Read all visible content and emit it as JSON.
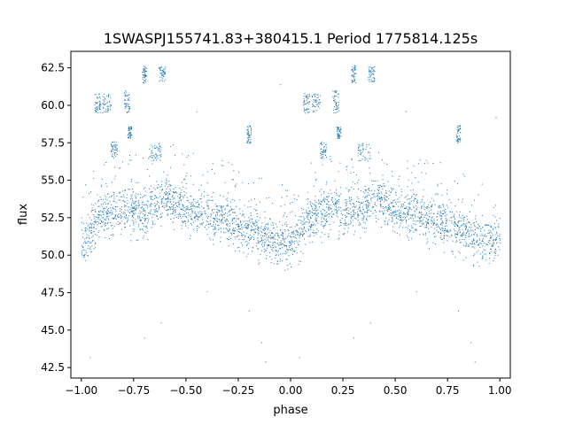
{
  "chart_data": {
    "type": "scatter",
    "title": "1SWASPJ155741.83+380415.1 Period 1775814.125s",
    "xlabel": "phase",
    "ylabel": "flux",
    "xlim": [
      -1.05,
      1.05
    ],
    "ylim": [
      41.8,
      63.6
    ],
    "x_ticks": [
      -1.0,
      -0.75,
      -0.5,
      -0.25,
      0.0,
      0.25,
      0.5,
      0.75,
      1.0
    ],
    "x_tick_labels": [
      "−1.00",
      "−0.75",
      "−0.50",
      "−0.25",
      "0.00",
      "0.25",
      "0.50",
      "0.75",
      "1.00"
    ],
    "y_ticks": [
      42.5,
      45.0,
      47.5,
      50.0,
      52.5,
      55.0,
      57.5,
      60.0,
      62.5
    ],
    "y_tick_labels": [
      "42.5",
      "45.0",
      "47.5",
      "50.0",
      "52.5",
      "55.0",
      "57.5",
      "60.0",
      "62.5"
    ],
    "grid": false,
    "legend": "none",
    "marker_color": "#1f77b4",
    "series": [
      {
        "x": [
          -1.0,
          -0.96,
          -0.92,
          -0.88,
          -0.84,
          -0.8,
          -0.76,
          -0.72,
          -0.68,
          -0.64,
          -0.6,
          -0.56,
          -0.52,
          -0.48,
          -0.44,
          -0.4,
          -0.36,
          -0.32,
          -0.28,
          -0.24,
          -0.2,
          -0.16,
          -0.12,
          -0.08,
          -0.04,
          0.0,
          0.04,
          0.08,
          0.12,
          0.16,
          0.2,
          0.24,
          0.28,
          0.32,
          0.36,
          0.4,
          0.44,
          0.48,
          0.52,
          0.56,
          0.6,
          0.64,
          0.68,
          0.72,
          0.76,
          0.8,
          0.84,
          0.88,
          0.92,
          0.96,
          1.0
        ],
        "y": [
          51.0,
          51.5,
          52.5,
          52.8,
          53.0,
          53.2,
          53.0,
          52.8,
          53.0,
          53.4,
          54.0,
          53.5,
          53.2,
          53.0,
          53.0,
          52.8,
          52.5,
          52.5,
          52.3,
          52.0,
          51.8,
          51.5,
          51.3,
          51.0,
          51.0,
          51.0,
          51.5,
          52.5,
          52.8,
          53.0,
          53.2,
          53.0,
          52.8,
          53.0,
          53.4,
          54.0,
          53.5,
          53.2,
          53.0,
          53.0,
          52.8,
          52.5,
          52.5,
          52.3,
          52.0,
          51.8,
          51.5,
          51.3,
          51.0,
          51.0,
          51.0
        ]
      }
    ],
    "clumps": [
      {
        "x": [
          -0.94,
          -0.91
        ],
        "y": [
          59.5,
          60.8
        ]
      },
      {
        "x": [
          -0.9,
          -0.86
        ],
        "y": [
          59.5,
          60.8
        ]
      },
      {
        "x": [
          -0.8,
          -0.77
        ],
        "y": [
          59.5,
          61.0
        ]
      },
      {
        "x": [
          -0.71,
          -0.69
        ],
        "y": [
          61.5,
          62.7
        ]
      },
      {
        "x": [
          -0.63,
          -0.6
        ],
        "y": [
          61.6,
          62.6
        ]
      },
      {
        "x": [
          -0.86,
          -0.83
        ],
        "y": [
          56.5,
          57.6
        ]
      },
      {
        "x": [
          -0.78,
          -0.76
        ],
        "y": [
          57.8,
          58.6
        ]
      },
      {
        "x": [
          -0.68,
          -0.62
        ],
        "y": [
          56.3,
          57.5
        ]
      },
      {
        "x": [
          -0.21,
          -0.19
        ],
        "y": [
          57.5,
          58.7
        ]
      },
      {
        "x": [
          0.06,
          0.09
        ],
        "y": [
          59.5,
          60.8
        ]
      },
      {
        "x": [
          0.1,
          0.14
        ],
        "y": [
          59.5,
          60.8
        ]
      },
      {
        "x": [
          0.2,
          0.23
        ],
        "y": [
          59.5,
          61.0
        ]
      },
      {
        "x": [
          0.29,
          0.31
        ],
        "y": [
          61.5,
          62.7
        ]
      },
      {
        "x": [
          0.37,
          0.4
        ],
        "y": [
          61.6,
          62.6
        ]
      },
      {
        "x": [
          0.14,
          0.17
        ],
        "y": [
          56.5,
          57.6
        ]
      },
      {
        "x": [
          0.22,
          0.24
        ],
        "y": [
          57.8,
          58.6
        ]
      },
      {
        "x": [
          0.32,
          0.38
        ],
        "y": [
          56.3,
          57.5
        ]
      },
      {
        "x": [
          0.79,
          0.81
        ],
        "y": [
          57.5,
          58.7
        ]
      }
    ],
    "outliers": [
      {
        "x": -0.96,
        "y": 43.2
      },
      {
        "x": -0.7,
        "y": 44.5
      },
      {
        "x": -0.62,
        "y": 45.5
      },
      {
        "x": -0.4,
        "y": 47.6
      },
      {
        "x": -0.2,
        "y": 46.3
      },
      {
        "x": -0.14,
        "y": 44.2
      },
      {
        "x": -0.12,
        "y": 42.9
      },
      {
        "x": -0.45,
        "y": 59.6
      },
      {
        "x": -0.05,
        "y": 61.4
      },
      {
        "x": 0.04,
        "y": 43.2
      },
      {
        "x": 0.3,
        "y": 44.5
      },
      {
        "x": 0.38,
        "y": 45.5
      },
      {
        "x": 0.6,
        "y": 47.6
      },
      {
        "x": 0.8,
        "y": 46.3
      },
      {
        "x": 0.86,
        "y": 44.2
      },
      {
        "x": 0.88,
        "y": 42.9
      },
      {
        "x": 0.55,
        "y": 59.6
      },
      {
        "x": 0.98,
        "y": 59.2
      }
    ]
  }
}
